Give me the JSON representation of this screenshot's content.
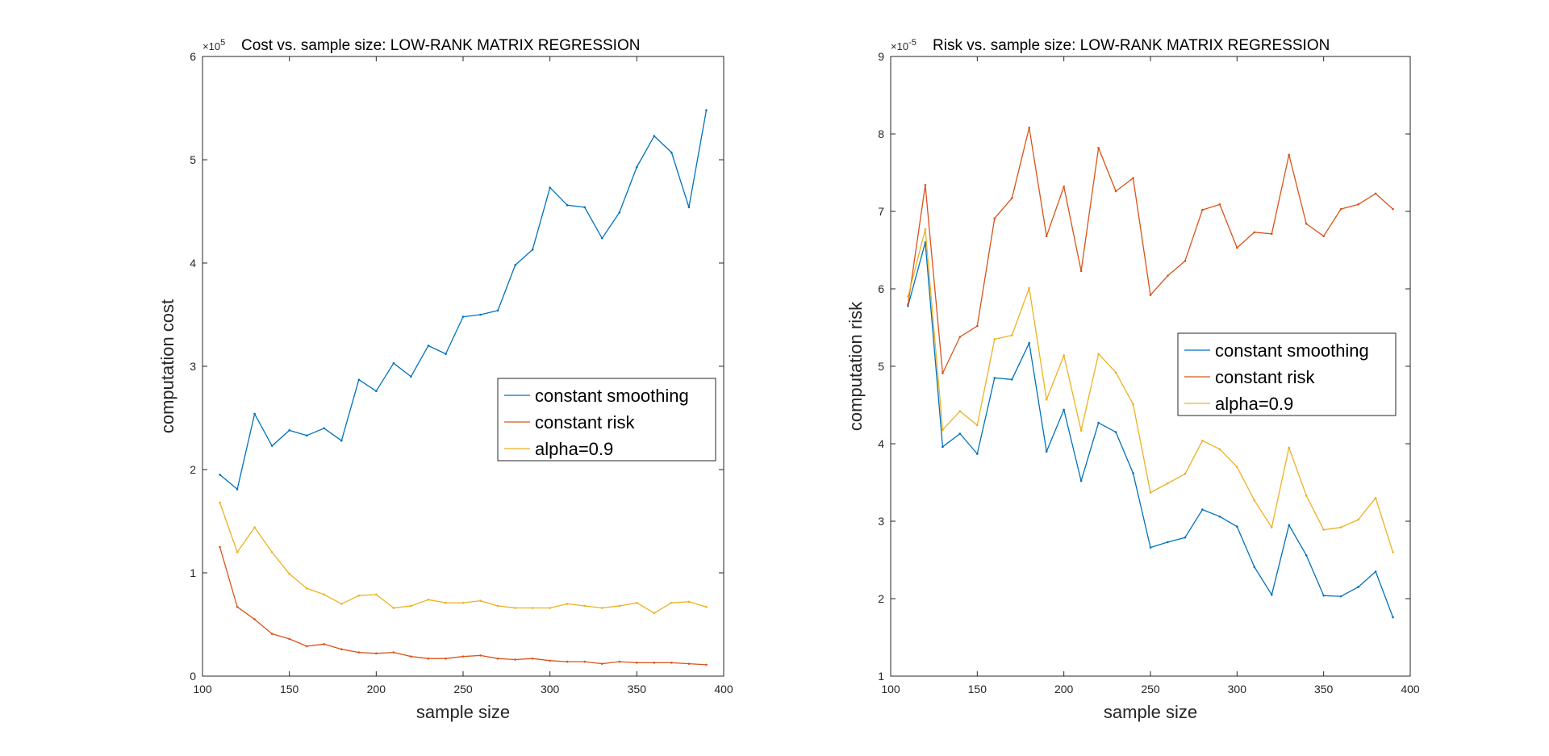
{
  "chart_data": [
    {
      "type": "line",
      "title": "Cost vs. sample size: LOW-RANK MATRIX REGRESSION",
      "xlabel": "sample size",
      "ylabel": "computation cost",
      "y_exponent_label": "×10",
      "y_exponent_power": "5",
      "y_multiplier": 100000,
      "xlim": [
        100,
        400
      ],
      "ylim": [
        0,
        6
      ],
      "xticks": [
        100,
        150,
        200,
        250,
        300,
        350,
        400
      ],
      "yticks": [
        0,
        1,
        2,
        3,
        4,
        5,
        6
      ],
      "grid": false,
      "legend_location": "right",
      "x": [
        110,
        120,
        130,
        140,
        150,
        160,
        170,
        180,
        190,
        200,
        210,
        220,
        230,
        240,
        250,
        260,
        270,
        280,
        290,
        300,
        310,
        320,
        330,
        340,
        350,
        360,
        370,
        380,
        390
      ],
      "series": [
        {
          "name": "constant smoothing",
          "color": "#0072BD",
          "values": [
            1.95,
            1.81,
            2.54,
            2.23,
            2.38,
            2.33,
            2.4,
            2.28,
            2.87,
            2.76,
            3.03,
            2.9,
            3.2,
            3.12,
            3.48,
            3.5,
            3.54,
            3.98,
            4.13,
            4.73,
            4.56,
            4.54,
            4.24,
            4.49,
            4.93,
            5.23,
            5.07,
            4.54,
            5.48
          ]
        },
        {
          "name": "constant risk",
          "color": "#D95319",
          "values": [
            1.25,
            0.67,
            0.55,
            0.41,
            0.36,
            0.29,
            0.31,
            0.26,
            0.23,
            0.22,
            0.23,
            0.19,
            0.17,
            0.17,
            0.19,
            0.2,
            0.17,
            0.16,
            0.17,
            0.15,
            0.14,
            0.14,
            0.12,
            0.14,
            0.13,
            0.13,
            0.13,
            0.12,
            0.11
          ]
        },
        {
          "name": "alpha=0.9",
          "color": "#EDB120",
          "values": [
            1.68,
            1.2,
            1.44,
            1.2,
            0.99,
            0.85,
            0.79,
            0.7,
            0.78,
            0.79,
            0.66,
            0.68,
            0.74,
            0.71,
            0.71,
            0.73,
            0.68,
            0.66,
            0.66,
            0.66,
            0.7,
            0.68,
            0.66,
            0.68,
            0.71,
            0.61,
            0.71,
            0.72,
            0.67
          ]
        }
      ]
    },
    {
      "type": "line",
      "title": "Risk vs. sample size: LOW-RANK MATRIX REGRESSION",
      "xlabel": "sample size",
      "ylabel": "computation risk",
      "y_exponent_label": "×10",
      "y_exponent_power": "-5",
      "y_multiplier": 1e-05,
      "xlim": [
        100,
        400
      ],
      "ylim": [
        1,
        9
      ],
      "xticks": [
        100,
        150,
        200,
        250,
        300,
        350,
        400
      ],
      "yticks": [
        1,
        2,
        3,
        4,
        5,
        6,
        7,
        8,
        9
      ],
      "grid": false,
      "legend_location": "right",
      "x": [
        110,
        120,
        130,
        140,
        150,
        160,
        170,
        180,
        190,
        200,
        210,
        220,
        230,
        240,
        250,
        260,
        270,
        280,
        290,
        300,
        310,
        320,
        330,
        340,
        350,
        360,
        370,
        380,
        390
      ],
      "series": [
        {
          "name": "constant smoothing",
          "color": "#0072BD",
          "values": [
            5.78,
            6.6,
            3.96,
            4.13,
            3.87,
            4.85,
            4.83,
            5.3,
            3.9,
            4.44,
            3.52,
            4.27,
            4.15,
            3.62,
            2.66,
            2.73,
            2.79,
            3.15,
            3.06,
            2.93,
            2.41,
            2.05,
            2.95,
            2.56,
            2.04,
            2.03,
            2.15,
            2.35,
            1.76
          ]
        },
        {
          "name": "constant risk",
          "color": "#D95319",
          "values": [
            5.8,
            7.34,
            4.91,
            5.38,
            5.52,
            6.91,
            7.17,
            8.08,
            6.68,
            7.32,
            6.23,
            7.82,
            7.26,
            7.43,
            5.92,
            6.17,
            6.36,
            7.02,
            7.09,
            6.53,
            6.73,
            6.71,
            7.73,
            6.84,
            6.68,
            7.03,
            7.09,
            7.23,
            7.03
          ]
        },
        {
          "name": "alpha=0.9",
          "color": "#EDB120",
          "values": [
            5.9,
            6.77,
            4.18,
            4.42,
            4.24,
            5.35,
            5.4,
            6.01,
            4.57,
            5.14,
            4.17,
            5.16,
            4.92,
            4.51,
            3.37,
            3.49,
            3.61,
            4.04,
            3.93,
            3.7,
            3.27,
            2.92,
            3.95,
            3.33,
            2.89,
            2.92,
            3.02,
            3.3,
            2.6
          ]
        }
      ]
    }
  ]
}
